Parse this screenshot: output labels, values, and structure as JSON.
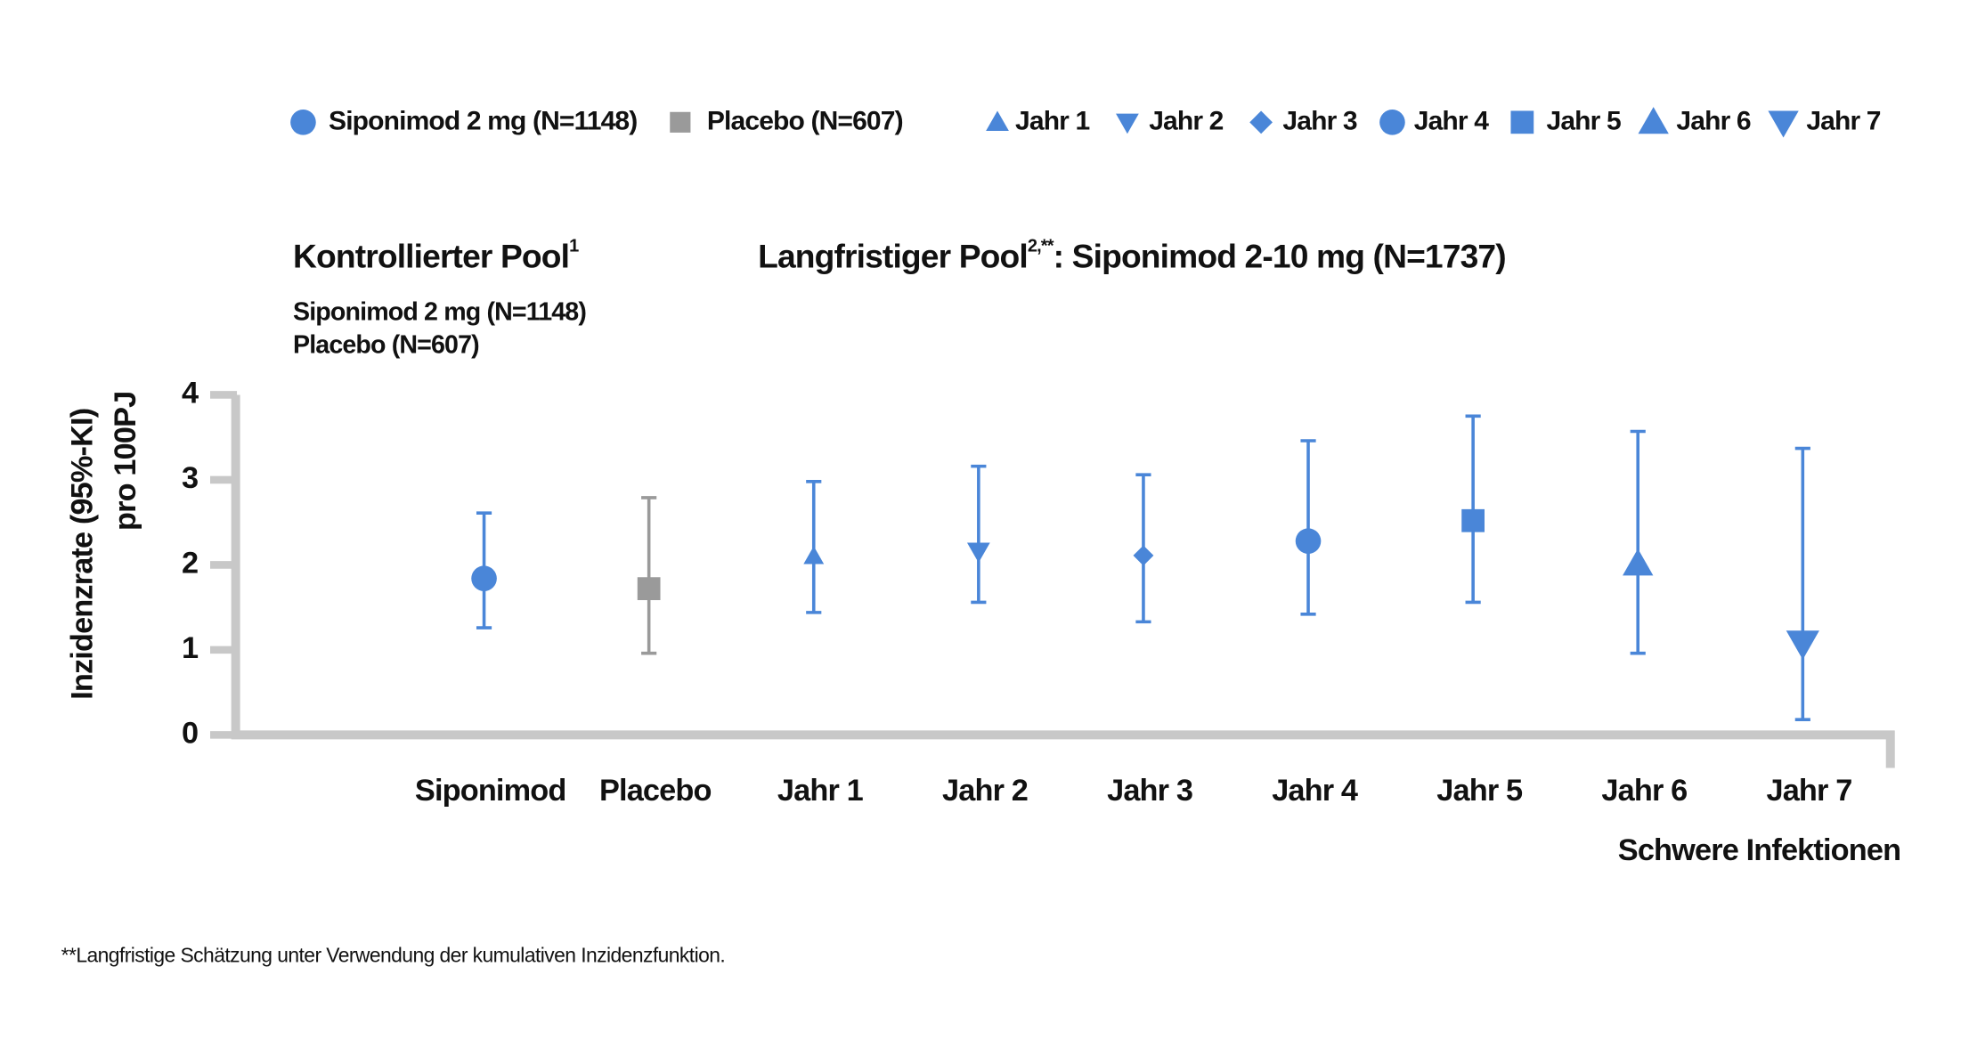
{
  "chart_data": {
    "type": "errorbar",
    "legend": [
      "Siponimod 2 mg (N=1148)",
      "Placebo (N=607)",
      "Jahr 1",
      "Jahr 2",
      "Jahr 3",
      "Jahr 4",
      "Jahr 5",
      "Jahr 6",
      "Jahr 7"
    ],
    "legend_markers": [
      "circle",
      "square",
      "triangle-up",
      "triangle-down",
      "diamond",
      "circle",
      "square",
      "triangle-up",
      "triangle-down"
    ],
    "pool_titles": [
      {
        "text": "Kontrollierter Pool",
        "sup": "1"
      },
      {
        "text": "Langfristiger Pool",
        "sup": "2,**",
        "rest": ": Siponimod 2-10 mg (N=1737)"
      }
    ],
    "pool_subtitle": [
      "Siponimod 2 mg (N=1148)",
      "Placebo (N=607)"
    ],
    "y_label": [
      "Inzidenzrate (95%-KI)",
      "pro 100PJ"
    ],
    "x_label": "Schwere Infektionen",
    "footnote": "**Langfristige Schätzung unter Verwendung der kumulativen Inzidenzfunktion.",
    "categories": [
      "Siponimod",
      "Placebo",
      "Jahr 1",
      "Jahr 2",
      "Jahr 3",
      "Jahr 4",
      "Jahr 5",
      "Jahr 6",
      "Jahr 7"
    ],
    "values": [
      1.84,
      1.72,
      2.1,
      2.16,
      2.11,
      2.28,
      2.52,
      2.01,
      1.08
    ],
    "ci_low": [
      1.26,
      0.96,
      1.44,
      1.56,
      1.33,
      1.42,
      1.56,
      0.96,
      0.18
    ],
    "ci_high": [
      2.61,
      2.79,
      2.98,
      3.16,
      3.06,
      3.46,
      3.75,
      3.57,
      3.37
    ],
    "markers": [
      "circle",
      "square",
      "triangle-up",
      "triangle-down",
      "diamond",
      "circle",
      "square",
      "triangle-up",
      "triangle-down"
    ],
    "colors": [
      "#4a86d8",
      "#9a9a9a",
      "#4a86d8",
      "#4a86d8",
      "#4a86d8",
      "#4a86d8",
      "#4a86d8",
      "#4a86d8",
      "#4a86d8"
    ],
    "ylim": [
      0,
      4
    ],
    "yticks": [
      0,
      1,
      2,
      3,
      4
    ]
  }
}
